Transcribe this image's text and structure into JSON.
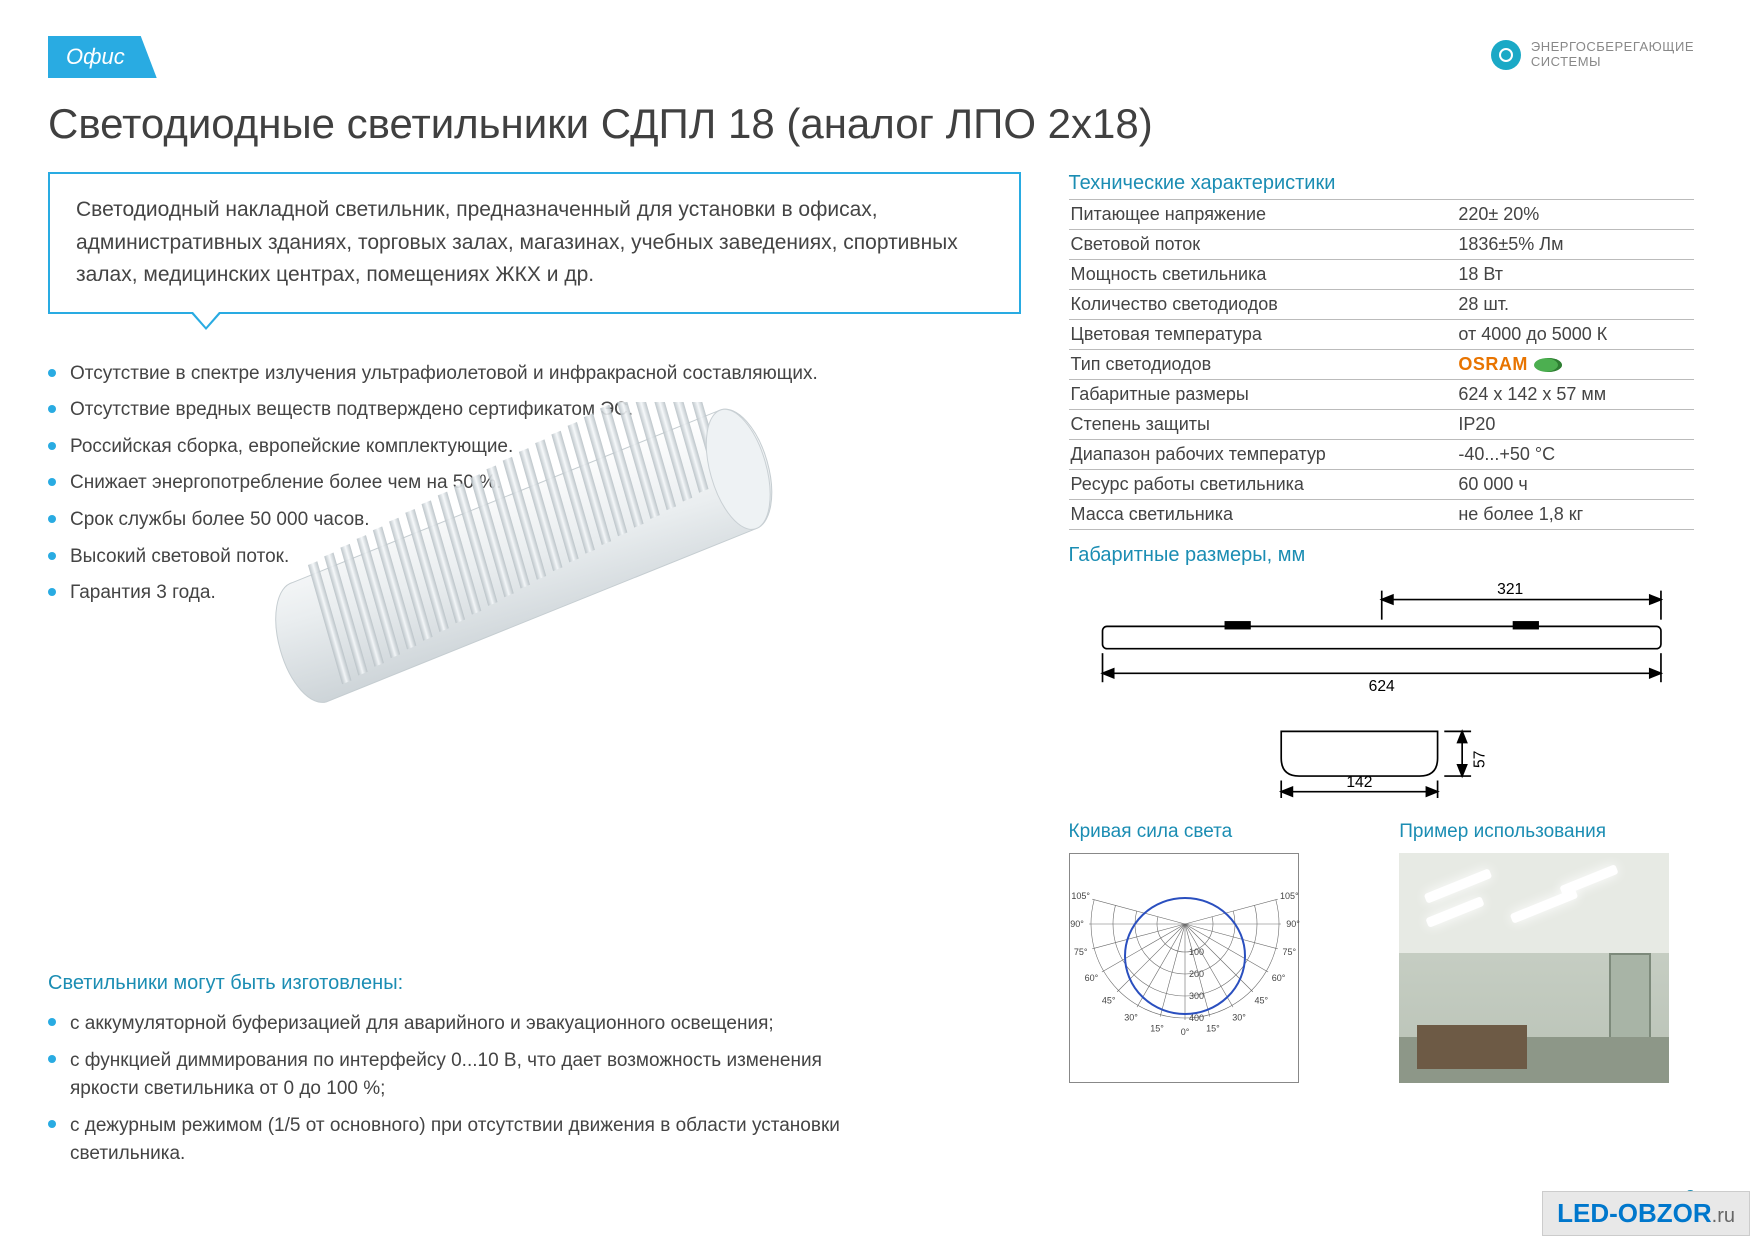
{
  "header": {
    "tab": "Офис",
    "brand_line1": "ЭНЕРГОСБЕРЕГАЮЩИЕ",
    "brand_line2": "СИСТЕМЫ"
  },
  "title": "Светодиодные светильники СДПЛ 18 (аналог ЛПО 2х18)",
  "intro": "Светодиодный накладной светильник, предназначенный для установки в офисах, административных зданиях, торговых залах, магазинах, учебных заведениях, спортивных залах, медицинских центрах, помещениях ЖКХ и др.",
  "features": [
    "Отсутствие в спектре излучения ультрафиолетовой и инфракрасной составляющих.",
    "Отсутствие вредных веществ подтверждено сертификатом ЭС.",
    "Российская сборка, европейские комплектующие.",
    "Снижает энергопотребление более чем на 50 %.",
    "Срок службы более 50 000 часов.",
    "Высокий световой поток.",
    "Гарантия 3 года."
  ],
  "options_title": "Светильники могут быть изготовлены:",
  "options": [
    "с аккумуляторной буферизацией для аварийного и эвакуационного освещения;",
    "с функцией диммирования по интерфейсу 0...10 В, что дает возможность изменения яркости светильника от 0 до 100 %;",
    "с дежурным режимом (1/5 от основного) при отсутствии движения в области установки светильника."
  ],
  "specs": {
    "heading": "Технические характеристики",
    "rows": [
      {
        "label": "Питающее напряжение",
        "value": "220± 20%"
      },
      {
        "label": "Световой поток",
        "value": "1836±5% Лм"
      },
      {
        "label": "Мощность светильника",
        "value": "18 Вт"
      },
      {
        "label": "Количество светодиодов",
        "value": "28 шт."
      },
      {
        "label": "Цветовая температура",
        "value": "от 4000 до 5000 К"
      },
      {
        "label": "Тип светодиодов",
        "value": "OSRAM",
        "osram": true
      },
      {
        "label": "Габаритные размеры",
        "value": "624 х 142 х 57 мм"
      },
      {
        "label": "Степень защиты",
        "value": "IP20"
      },
      {
        "label": "Диапазон рабочих температур",
        "value": "-40...+50 °С"
      },
      {
        "label": "Ресурс работы светильника",
        "value": "60 000 ч"
      },
      {
        "label": "Масса светильника",
        "value": "не более 1,8 кг"
      }
    ]
  },
  "dimensions": {
    "heading": "Габаритные размеры, мм",
    "top_length": "624",
    "top_half": "321",
    "width": "142",
    "height": "57",
    "stroke": "#000000",
    "fill": "#ffffff"
  },
  "polar": {
    "heading": "Кривая сила света",
    "angles": [
      "105°",
      "90°",
      "75°",
      "60°",
      "45°",
      "30°",
      "15°",
      "0°"
    ],
    "rings": [
      "100",
      "200",
      "300",
      "400"
    ],
    "ring_color": "#6a6a6a",
    "curve_color": "#2a4fbf"
  },
  "usage": {
    "heading": "Пример использования"
  },
  "page_number": "9",
  "watermark": {
    "main": "LED-OBZOR",
    "suffix": ".ru"
  },
  "colors": {
    "accent": "#29abe2",
    "heading": "#1b8db3",
    "text": "#404040",
    "rule": "#bbbbbb"
  }
}
